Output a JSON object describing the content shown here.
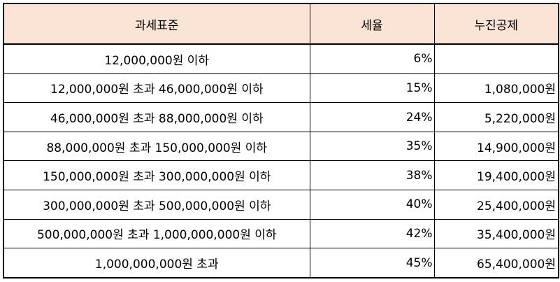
{
  "table": {
    "headers": {
      "base": "과세표준",
      "rate": "세율",
      "deduction": "누진공제"
    },
    "rows": [
      {
        "base": "12,000,000원 이하",
        "rate": "6%",
        "deduction": ""
      },
      {
        "base": "12,000,000원 초과 46,000,000원 이하",
        "rate": "15%",
        "deduction": "1,080,000원"
      },
      {
        "base": "46,000,000원 초과 88,000,000원 이하",
        "rate": "24%",
        "deduction": "5,220,000원"
      },
      {
        "base": "88,000,000원 초과 150,000,000원 이하",
        "rate": "35%",
        "deduction": "14,900,000원"
      },
      {
        "base": "150,000,000원 초과 300,000,000원 이하",
        "rate": "38%",
        "deduction": "19,400,000원"
      },
      {
        "base": "300,000,000원 초과 500,000,000원 이하",
        "rate": "40%",
        "deduction": "25,400,000원"
      },
      {
        "base": "500,000,000원 초과 1,000,000,000원 이하",
        "rate": "42%",
        "deduction": "35,400,000원"
      },
      {
        "base": "1,000,000,000원 초과",
        "rate": "45%",
        "deduction": "65,400,000원"
      }
    ]
  },
  "colors": {
    "header_background": "#fbe4d5",
    "border": "#000000"
  }
}
